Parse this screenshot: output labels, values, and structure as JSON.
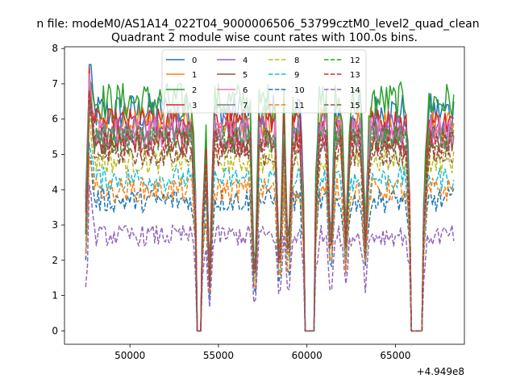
{
  "suptitle": "n file: modeM0/AS1A14_022T04_9000006506_53799cztM0_level2_quad_clean",
  "chart_data": {
    "type": "line",
    "title": "Quadrant 2 module wise count rates with 100.0s bins.",
    "xlabel": "",
    "ylabel": "",
    "x_offset_label": "+4.949e8",
    "xlim": [
      46300,
      68900
    ],
    "ylim": [
      -0.38,
      8.05
    ],
    "xticks": [
      50000,
      55000,
      60000,
      65000
    ],
    "xtick_labels": [
      "50000",
      "55000",
      "60000",
      "65000"
    ],
    "yticks": [
      0,
      1,
      2,
      3,
      4,
      5,
      6,
      7,
      8
    ],
    "ytick_labels": [
      "0",
      "1",
      "2",
      "3",
      "4",
      "5",
      "6",
      "7",
      "8"
    ],
    "grid": false,
    "legend_position": "top-center",
    "legend_columns": 4,
    "series": [
      {
        "name": "0",
        "color": "#1f77b4",
        "style": "solid",
        "level": 6.2,
        "spread": 0.55,
        "spike": 7.4
      },
      {
        "name": "1",
        "color": "#ff7f0e",
        "style": "solid",
        "level": 5.9,
        "spread": 0.45,
        "spike": 7.2
      },
      {
        "name": "2",
        "color": "#2ca02c",
        "style": "solid",
        "level": 6.5,
        "spread": 0.55,
        "spike": 7.65
      },
      {
        "name": "3",
        "color": "#d62728",
        "style": "solid",
        "level": 5.9,
        "spread": 0.4,
        "spike": 7.3
      },
      {
        "name": "4",
        "color": "#9467bd",
        "style": "solid",
        "level": 5.7,
        "spread": 0.45,
        "spike": 6.9
      },
      {
        "name": "5",
        "color": "#8c564b",
        "style": "solid",
        "level": 5.4,
        "spread": 0.4,
        "spike": 6.7
      },
      {
        "name": "6",
        "color": "#e377c2",
        "style": "solid",
        "level": 5.6,
        "spread": 0.45,
        "spike": 6.9
      },
      {
        "name": "7",
        "color": "#7f7f7f",
        "style": "solid",
        "level": 5.5,
        "spread": 0.4,
        "spike": 6.8
      },
      {
        "name": "8",
        "color": "#bcbd22",
        "style": "dashed",
        "level": 4.8,
        "spread": 0.35,
        "spike": 6.0
      },
      {
        "name": "9",
        "color": "#17becf",
        "style": "dashed",
        "level": 4.3,
        "spread": 0.35,
        "spike": 5.6
      },
      {
        "name": "10",
        "color": "#1f77b4",
        "style": "dashed",
        "level": 3.7,
        "spread": 0.35,
        "spike": 5.2
      },
      {
        "name": "11",
        "color": "#ff7f0e",
        "style": "dashed",
        "level": 4.0,
        "spread": 0.35,
        "spike": 5.3
      },
      {
        "name": "12",
        "color": "#2ca02c",
        "style": "dashed",
        "level": 5.4,
        "spread": 0.4,
        "spike": 6.6
      },
      {
        "name": "13",
        "color": "#d62728",
        "style": "dashed",
        "level": 5.3,
        "spread": 0.4,
        "spike": 6.5
      },
      {
        "name": "14",
        "color": "#9467bd",
        "style": "dashed",
        "level": 2.7,
        "spread": 0.3,
        "spike": 4.3
      },
      {
        "name": "15",
        "color": "#8c564b",
        "style": "dashed",
        "level": 5.0,
        "spread": 0.35,
        "spike": 6.2
      }
    ],
    "x_range": [
      47500,
      68300
    ],
    "bin_width": 100,
    "zero_gaps": [
      [
        53800,
        54050
      ],
      [
        59900,
        60400
      ],
      [
        65900,
        66550
      ]
    ],
    "dips": [
      {
        "x": 54500,
        "depth": 0.75
      },
      {
        "x": 57050,
        "depth": 0.85
      },
      {
        "x": 58450,
        "depth": 0.75
      },
      {
        "x": 58950,
        "depth": 0.7
      },
      {
        "x": 61350,
        "depth": 0.65
      },
      {
        "x": 62200,
        "depth": 0.55
      },
      {
        "x": 63300,
        "depth": 0.55
      }
    ]
  }
}
